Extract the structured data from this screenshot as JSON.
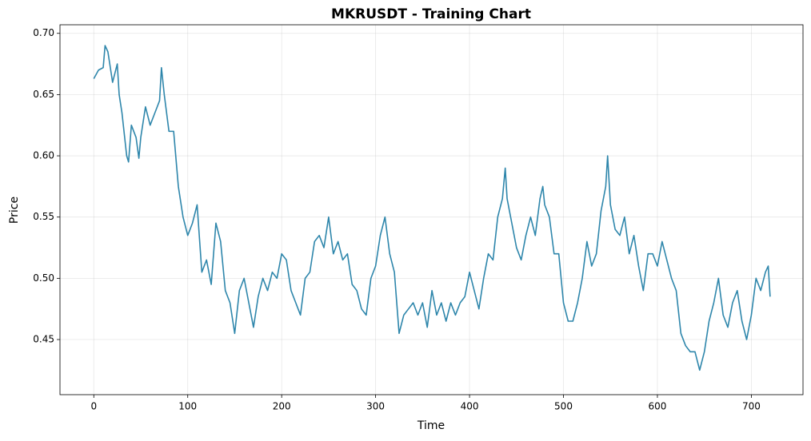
{
  "chart_data": {
    "type": "line",
    "title": "MKRUSDT - Training Chart",
    "x_label": "Time",
    "y_label": "Price",
    "color": "#2e86ab",
    "grid": true,
    "xlim": [
      -36,
      755
    ],
    "ylim": [
      0.405,
      0.707
    ],
    "xticks": [
      0,
      100,
      200,
      300,
      400,
      500,
      600,
      700
    ],
    "yticks": [
      {
        "value": 0.45,
        "label": "0.45"
      },
      {
        "value": 0.5,
        "label": "0.50"
      },
      {
        "value": 0.55,
        "label": "0.55"
      },
      {
        "value": 0.6,
        "label": "0.60"
      },
      {
        "value": 0.65,
        "label": "0.65"
      },
      {
        "value": 0.7,
        "label": "0.70"
      }
    ],
    "x": [
      0,
      5,
      10,
      12,
      15,
      20,
      25,
      27,
      30,
      35,
      37,
      40,
      45,
      48,
      50,
      55,
      60,
      65,
      70,
      72,
      75,
      80,
      85,
      90,
      95,
      100,
      105,
      110,
      115,
      120,
      125,
      130,
      135,
      140,
      145,
      150,
      155,
      160,
      165,
      170,
      175,
      180,
      185,
      190,
      195,
      200,
      205,
      210,
      215,
      220,
      225,
      230,
      235,
      240,
      245,
      250,
      255,
      260,
      265,
      270,
      275,
      280,
      285,
      290,
      295,
      300,
      305,
      310,
      315,
      320,
      325,
      330,
      335,
      340,
      345,
      350,
      355,
      360,
      365,
      370,
      375,
      380,
      385,
      390,
      395,
      400,
      405,
      410,
      415,
      420,
      425,
      430,
      435,
      438,
      440,
      445,
      450,
      455,
      460,
      465,
      470,
      475,
      478,
      480,
      485,
      490,
      495,
      500,
      505,
      510,
      515,
      520,
      525,
      530,
      535,
      540,
      545,
      547,
      550,
      555,
      560,
      565,
      570,
      575,
      580,
      585,
      590,
      595,
      600,
      605,
      610,
      615,
      620,
      625,
      630,
      635,
      640,
      645,
      650,
      655,
      660,
      665,
      670,
      675,
      680,
      685,
      690,
      695,
      700,
      705,
      710,
      715,
      718,
      720
    ],
    "values": [
      0.663,
      0.67,
      0.672,
      0.69,
      0.685,
      0.66,
      0.675,
      0.65,
      0.635,
      0.6,
      0.595,
      0.625,
      0.615,
      0.598,
      0.615,
      0.64,
      0.625,
      0.635,
      0.645,
      0.672,
      0.65,
      0.62,
      0.62,
      0.575,
      0.55,
      0.535,
      0.545,
      0.56,
      0.505,
      0.515,
      0.495,
      0.545,
      0.53,
      0.49,
      0.48,
      0.455,
      0.49,
      0.5,
      0.48,
      0.46,
      0.485,
      0.5,
      0.49,
      0.505,
      0.5,
      0.52,
      0.515,
      0.49,
      0.48,
      0.47,
      0.5,
      0.505,
      0.53,
      0.535,
      0.525,
      0.55,
      0.52,
      0.53,
      0.515,
      0.52,
      0.495,
      0.49,
      0.475,
      0.47,
      0.5,
      0.51,
      0.535,
      0.55,
      0.52,
      0.505,
      0.455,
      0.47,
      0.475,
      0.48,
      0.47,
      0.48,
      0.46,
      0.49,
      0.47,
      0.48,
      0.465,
      0.48,
      0.47,
      0.48,
      0.485,
      0.505,
      0.49,
      0.475,
      0.5,
      0.52,
      0.515,
      0.55,
      0.565,
      0.59,
      0.565,
      0.545,
      0.525,
      0.515,
      0.535,
      0.55,
      0.535,
      0.565,
      0.575,
      0.56,
      0.55,
      0.52,
      0.52,
      0.48,
      0.465,
      0.465,
      0.48,
      0.5,
      0.53,
      0.51,
      0.52,
      0.555,
      0.575,
      0.6,
      0.56,
      0.54,
      0.535,
      0.55,
      0.52,
      0.535,
      0.51,
      0.49,
      0.52,
      0.52,
      0.51,
      0.53,
      0.515,
      0.5,
      0.49,
      0.455,
      0.445,
      0.44,
      0.44,
      0.425,
      0.44,
      0.465,
      0.48,
      0.5,
      0.47,
      0.46,
      0.48,
      0.49,
      0.465,
      0.45,
      0.47,
      0.5,
      0.49,
      0.505,
      0.51,
      0.485
    ]
  }
}
